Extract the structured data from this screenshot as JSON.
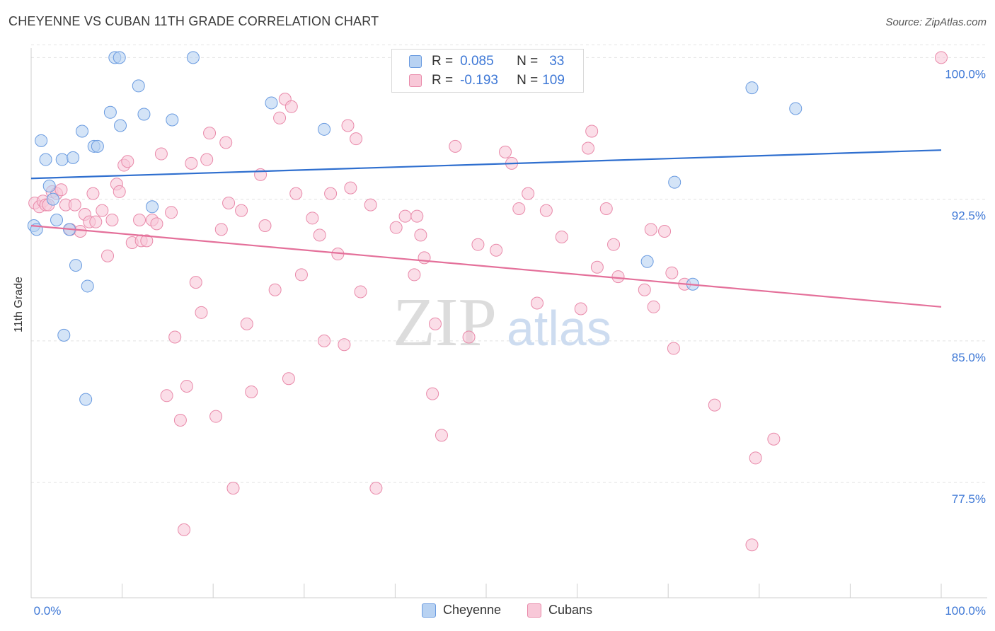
{
  "title": "CHEYENNE VS CUBAN 11TH GRADE CORRELATION CHART",
  "source": "Source: ZipAtlas.com",
  "watermark": {
    "zip": "ZIP",
    "atlas": "atlas"
  },
  "legend_top": {
    "rows": [
      {
        "r_label": "R =",
        "r_value": "0.085",
        "n_label": "N =",
        "n_value": "33"
      },
      {
        "r_label": "R =",
        "r_value": "-0.193",
        "n_label": "N =",
        "n_value": "109"
      }
    ]
  },
  "legend_bottom": {
    "series1": "Cheyenne",
    "series2": "Cubans"
  },
  "colors": {
    "cheyenne_fill": "#b8d2f2",
    "cheyenne_stroke": "#6a9be0",
    "cheyenne_line": "#2f6fcf",
    "cubans_fill": "#f8c8d8",
    "cubans_stroke": "#e98aaa",
    "cubans_line": "#e4709a",
    "tick_label": "#3e78d6",
    "grid": "#e2e2e2"
  },
  "chart_data": {
    "type": "scatter",
    "title": "CHEYENNE VS CUBAN 11TH GRADE CORRELATION CHART",
    "xlabel": "",
    "ylabel": "11th Grade",
    "xlim": [
      0,
      100
    ],
    "ylim": [
      71.4,
      100.8
    ],
    "x_tick_labels": [
      "0.0%",
      "100.0%"
    ],
    "y_ticks": [
      77.5,
      85.0,
      92.5,
      100.0
    ],
    "y_tick_labels": [
      "77.5%",
      "85.0%",
      "92.5%",
      "100.0%"
    ],
    "grid": true,
    "series": [
      {
        "name": "Cheyenne",
        "R": 0.085,
        "N": 33,
        "trend": {
          "x": [
            0,
            100
          ],
          "y": [
            93.6,
            95.1
          ]
        },
        "points": [
          [
            0.3,
            91.1
          ],
          [
            0.6,
            90.9
          ],
          [
            1.1,
            95.6
          ],
          [
            1.6,
            94.6
          ],
          [
            2.0,
            93.2
          ],
          [
            2.4,
            92.5
          ],
          [
            2.8,
            91.4
          ],
          [
            3.4,
            94.6
          ],
          [
            3.6,
            85.3
          ],
          [
            4.2,
            90.9
          ],
          [
            4.6,
            94.7
          ],
          [
            4.9,
            89.0
          ],
          [
            5.6,
            96.1
          ],
          [
            6.2,
            87.9
          ],
          [
            6.0,
            81.9
          ],
          [
            6.9,
            95.3
          ],
          [
            7.3,
            95.3
          ],
          [
            8.7,
            97.1
          ],
          [
            9.2,
            100.0
          ],
          [
            9.7,
            100.0
          ],
          [
            9.8,
            96.4
          ],
          [
            11.8,
            98.5
          ],
          [
            12.4,
            97.0
          ],
          [
            13.3,
            92.1
          ],
          [
            15.5,
            96.7
          ],
          [
            17.8,
            100.0
          ],
          [
            26.4,
            97.6
          ],
          [
            32.2,
            96.2
          ],
          [
            70.7,
            93.4
          ],
          [
            67.7,
            89.2
          ],
          [
            72.7,
            88.0
          ],
          [
            79.2,
            98.4
          ],
          [
            84.0,
            97.3
          ]
        ]
      },
      {
        "name": "Cubans",
        "R": -0.193,
        "N": 109,
        "trend": {
          "x": [
            0,
            100
          ],
          "y": [
            91.1,
            86.8
          ]
        },
        "points": [
          [
            0.4,
            92.3
          ],
          [
            0.9,
            92.1
          ],
          [
            1.3,
            92.4
          ],
          [
            1.6,
            92.2
          ],
          [
            1.9,
            92.2
          ],
          [
            2.3,
            92.9
          ],
          [
            2.8,
            92.8
          ],
          [
            3.3,
            93.0
          ],
          [
            3.8,
            92.2
          ],
          [
            4.3,
            90.9
          ],
          [
            4.8,
            92.2
          ],
          [
            5.4,
            90.8
          ],
          [
            5.9,
            91.7
          ],
          [
            6.4,
            91.3
          ],
          [
            6.8,
            92.8
          ],
          [
            7.1,
            91.3
          ],
          [
            7.8,
            91.9
          ],
          [
            8.4,
            89.5
          ],
          [
            8.9,
            91.4
          ],
          [
            9.4,
            93.3
          ],
          [
            9.7,
            92.9
          ],
          [
            10.2,
            94.3
          ],
          [
            10.6,
            94.5
          ],
          [
            11.1,
            90.2
          ],
          [
            11.9,
            91.4
          ],
          [
            12.1,
            90.3
          ],
          [
            12.7,
            90.3
          ],
          [
            13.3,
            91.4
          ],
          [
            13.8,
            91.2
          ],
          [
            14.3,
            94.9
          ],
          [
            14.9,
            82.1
          ],
          [
            15.4,
            91.8
          ],
          [
            15.8,
            85.2
          ],
          [
            16.4,
            80.8
          ],
          [
            16.8,
            75.0
          ],
          [
            17.1,
            82.6
          ],
          [
            17.6,
            94.4
          ],
          [
            18.1,
            88.1
          ],
          [
            18.7,
            86.5
          ],
          [
            19.3,
            94.6
          ],
          [
            19.6,
            96.0
          ],
          [
            20.3,
            81.0
          ],
          [
            20.9,
            90.9
          ],
          [
            21.4,
            95.5
          ],
          [
            21.7,
            92.3
          ],
          [
            22.2,
            77.2
          ],
          [
            23.1,
            91.9
          ],
          [
            23.7,
            85.9
          ],
          [
            24.2,
            82.3
          ],
          [
            25.2,
            93.8
          ],
          [
            25.7,
            91.1
          ],
          [
            26.8,
            87.7
          ],
          [
            27.3,
            96.8
          ],
          [
            27.9,
            97.8
          ],
          [
            28.3,
            83.0
          ],
          [
            28.6,
            97.4
          ],
          [
            29.1,
            92.8
          ],
          [
            29.7,
            88.5
          ],
          [
            30.9,
            91.5
          ],
          [
            31.7,
            90.6
          ],
          [
            32.2,
            85.0
          ],
          [
            32.9,
            92.8
          ],
          [
            33.7,
            89.6
          ],
          [
            34.4,
            84.8
          ],
          [
            34.8,
            96.4
          ],
          [
            35.1,
            93.1
          ],
          [
            35.7,
            95.7
          ],
          [
            36.2,
            87.6
          ],
          [
            37.3,
            92.2
          ],
          [
            37.9,
            77.2
          ],
          [
            40.1,
            91.0
          ],
          [
            41.1,
            91.6
          ],
          [
            42.1,
            88.5
          ],
          [
            42.4,
            91.6
          ],
          [
            42.8,
            90.6
          ],
          [
            43.2,
            89.4
          ],
          [
            44.1,
            82.2
          ],
          [
            44.4,
            85.9
          ],
          [
            45.1,
            80.0
          ],
          [
            46.6,
            95.3
          ],
          [
            48.1,
            85.2
          ],
          [
            49.1,
            90.1
          ],
          [
            51.1,
            89.8
          ],
          [
            52.1,
            95.0
          ],
          [
            52.8,
            94.4
          ],
          [
            53.6,
            92.0
          ],
          [
            54.6,
            92.8
          ],
          [
            55.6,
            87.0
          ],
          [
            56.6,
            91.9
          ],
          [
            58.3,
            90.5
          ],
          [
            60.4,
            86.7
          ],
          [
            61.2,
            95.2
          ],
          [
            61.6,
            96.1
          ],
          [
            62.2,
            88.9
          ],
          [
            63.2,
            92.0
          ],
          [
            64.0,
            90.1
          ],
          [
            64.5,
            88.4
          ],
          [
            67.4,
            87.7
          ],
          [
            68.1,
            90.9
          ],
          [
            68.4,
            86.8
          ],
          [
            69.6,
            90.8
          ],
          [
            70.4,
            88.6
          ],
          [
            70.6,
            84.6
          ],
          [
            75.1,
            81.6
          ],
          [
            79.2,
            74.2
          ],
          [
            79.6,
            78.8
          ],
          [
            81.6,
            79.8
          ],
          [
            100.0,
            100.0
          ],
          [
            71.8,
            88.0
          ]
        ]
      }
    ]
  }
}
